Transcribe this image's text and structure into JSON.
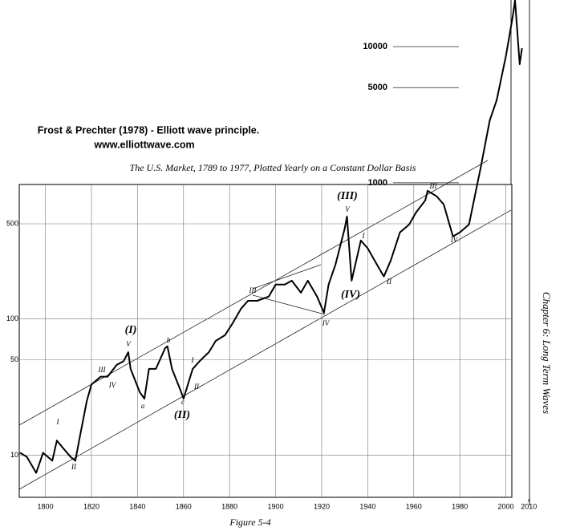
{
  "chart_data": {
    "type": "line",
    "title": "Frost & Prechter (1978) - Elliott wave principle.",
    "subtitle": "www.elliottwave.com",
    "chart_title": "The U.S. Market, 1789 to 1977, Plotted Yearly on a Constant Dollar Basis",
    "caption": "Figure 5-4",
    "side_label": "Chapter 6: Long Term Waves",
    "log_y": true,
    "grid": true,
    "xlim": [
      1789,
      2012
    ],
    "ylim": [
      4.9,
      22000
    ],
    "xticks": [
      1800,
      1820,
      1840,
      1860,
      1880,
      1900,
      1920,
      1940,
      1960,
      1980,
      2000,
      2010
    ],
    "yticks": [
      10,
      50,
      100,
      500,
      1000,
      5000,
      10000
    ],
    "series": [
      {
        "color": "#000000",
        "x": [
          1789,
          1792,
          1796,
          1799,
          1803,
          1805,
          1808,
          1811,
          1813,
          1815,
          1818,
          1820,
          1824,
          1827,
          1831,
          1834,
          1836,
          1837,
          1841,
          1843,
          1845,
          1848,
          1852,
          1853,
          1855,
          1859,
          1860,
          1864,
          1867,
          1871,
          1874,
          1878,
          1881,
          1885,
          1888,
          1892,
          1897,
          1900,
          1904,
          1907,
          1911,
          1914,
          1918,
          1921,
          1923,
          1926,
          1930,
          1931,
          1933,
          1937,
          1940,
          1944,
          1947,
          1950,
          1954,
          1958,
          1961,
          1965,
          1966,
          1970,
          1973,
          1977,
          1980,
          1984,
          1989,
          1993,
          1996,
          2000,
          2003,
          2004,
          2005,
          2006,
          2007
        ],
        "values": [
          10.4,
          9.7,
          7.4,
          10.4,
          9.1,
          12.8,
          11.1,
          9.7,
          9.1,
          13.7,
          25,
          33,
          37.7,
          37.7,
          46,
          49,
          57,
          43,
          29,
          26,
          43,
          43,
          61,
          63,
          43,
          29,
          26,
          43,
          49,
          57,
          69,
          76,
          91,
          119,
          136,
          136,
          146,
          179,
          179,
          191,
          156,
          191,
          146,
          111,
          179,
          251,
          462,
          566,
          191,
          377,
          330,
          251,
          205,
          269,
          432,
          494,
          605,
          743,
          873,
          794,
          693,
          404,
          432,
          494,
          1276,
          2877,
          4036,
          8500,
          16750,
          21900,
          12760,
          7430,
          9730
        ]
      }
    ],
    "annotations": [
      "(I)",
      "V",
      "III",
      "IV",
      "I",
      "II",
      "a",
      "b",
      "c",
      "(II)",
      "I",
      "II",
      "III",
      "IV",
      "(III)",
      "V",
      "(IV)",
      "I",
      "II",
      "III",
      "IV"
    ]
  }
}
